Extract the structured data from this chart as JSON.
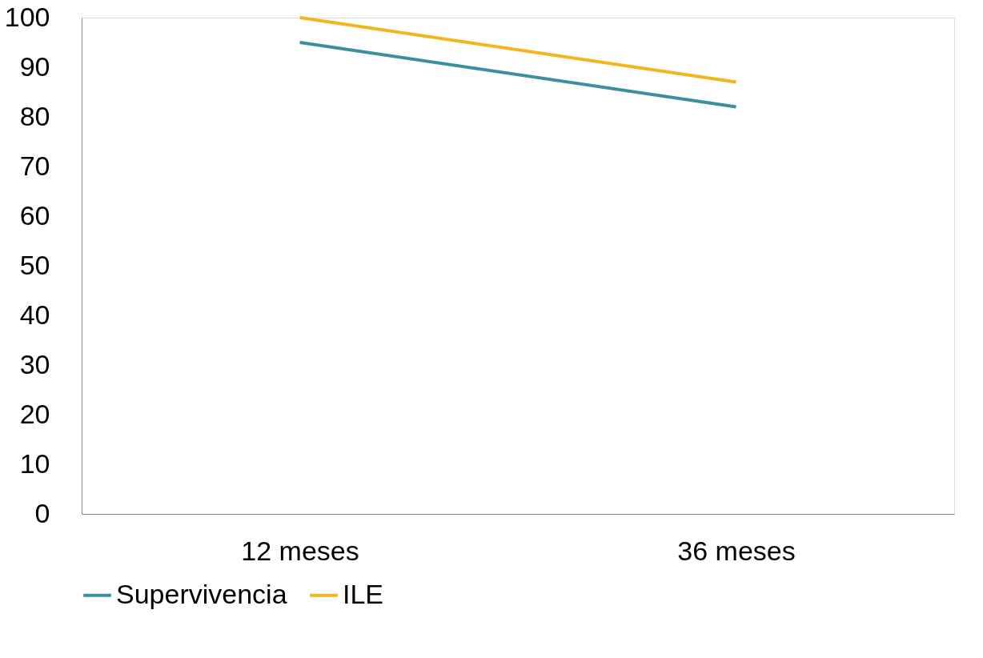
{
  "chart_data": {
    "type": "line",
    "categories": [
      "12 meses",
      "36 meses"
    ],
    "series": [
      {
        "name": "Supervivencia",
        "color": "#3a8fa3",
        "values": [
          95,
          82
        ]
      },
      {
        "name": "ILE",
        "color": "#f5b51c",
        "values": [
          100,
          87
        ]
      }
    ],
    "ylim": [
      0,
      100
    ],
    "yticks": [
      0,
      10,
      20,
      30,
      40,
      50,
      60,
      70,
      80,
      90,
      100
    ],
    "grid": false,
    "legend": "bottom",
    "marker": "none",
    "line_style": "solid"
  }
}
